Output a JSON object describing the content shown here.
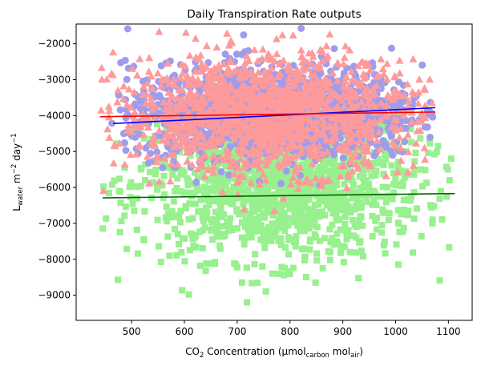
{
  "chart_data": {
    "type": "scatter",
    "title": "Daily Transpiration Rate outputs",
    "xlabel": {
      "base": "CO",
      "sub1": "2",
      "mid": " Concentration (µmol",
      "sub2": "carbon",
      "mid2": " mol",
      "sub3": "air",
      "end": ")"
    },
    "ylabel": {
      "base": "L",
      "sub": "water",
      "mid": " m",
      "sup1": "−2",
      "mid2": " day",
      "sup2": "−1"
    },
    "xlim": [
      395,
      1145
    ],
    "ylim": [
      -9700,
      -1450
    ],
    "xticks": [
      500,
      600,
      700,
      800,
      900,
      1000,
      1100
    ],
    "yticks": [
      -9000,
      -8000,
      -7000,
      -6000,
      -5000,
      -4000,
      -3000,
      -2000
    ],
    "xtick_labels": [
      "500",
      "600",
      "700",
      "800",
      "900",
      "1000",
      "1100"
    ],
    "ytick_labels": [
      "−9000",
      "−8000",
      "−7000",
      "−6000",
      "−5000",
      "−4000",
      "−3000",
      "−2000"
    ],
    "grid": false,
    "legend": "none",
    "series": [
      {
        "marker": "square",
        "color": "#98f08e",
        "x_center": 780,
        "x_spread": 135,
        "x_range": [
          445,
          1112
        ],
        "y_center": -5900,
        "y_spread": 1050,
        "y_range": [
          -9300,
          -3800
        ],
        "fit_line": {
          "color": "#006400",
          "x": [
            445,
            1112
          ],
          "y": [
            -6290,
            -6170
          ]
        }
      },
      {
        "marker": "circle",
        "color": "#a09cec",
        "x_center": 770,
        "x_spread": 140,
        "x_range": [
          455,
          1075
        ],
        "y_center": -3900,
        "y_spread": 650,
        "y_range": [
          -7000,
          -1550
        ],
        "fit_line": {
          "color": "#0000ff",
          "x": [
            465,
            1075
          ],
          "y": [
            -4220,
            -3780
          ]
        }
      },
      {
        "marker": "triangle",
        "color": "#ff9a9a",
        "x_center": 760,
        "x_spread": 140,
        "x_range": [
          440,
          1075
        ],
        "y_center": -3950,
        "y_spread": 800,
        "y_range": [
          -6800,
          -1550
        ],
        "fit_line": {
          "color": "#ff0000",
          "x": [
            440,
            1075
          ],
          "y": [
            -4030,
            -3900
          ]
        }
      }
    ]
  }
}
